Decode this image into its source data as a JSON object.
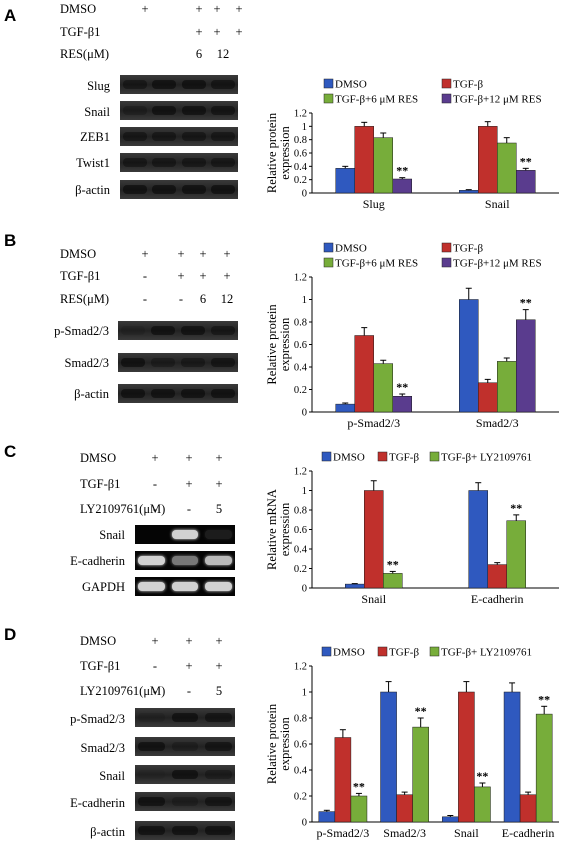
{
  "panels": [
    {
      "id": "A",
      "label": "A",
      "conditions": [
        {
          "name": "DMSO",
          "values": [
            "+",
            "+",
            "+",
            "+"
          ]
        },
        {
          "name": "TGF-β1",
          "values": [
            "",
            "+",
            "+",
            "+"
          ]
        },
        {
          "name": "RES(μM)",
          "values": [
            "",
            "",
            "6",
            "12"
          ]
        }
      ],
      "blots": [
        "Slug",
        "Snail",
        "ZEB1",
        "Twist1",
        "β-actin"
      ],
      "band_intensity": [
        [
          0.7,
          0.9,
          0.9,
          0.8
        ],
        [
          0.4,
          0.9,
          0.9,
          0.8
        ],
        [
          0.7,
          0.7,
          0.7,
          0.7
        ],
        [
          0.7,
          0.7,
          0.7,
          0.7
        ],
        [
          0.9,
          0.9,
          0.9,
          0.9
        ]
      ]
    },
    {
      "id": "B",
      "label": "B",
      "conditions": [
        {
          "name": "DMSO",
          "values": [
            "+",
            "+",
            "+",
            "+"
          ]
        },
        {
          "name": "TGF-β1",
          "values": [
            "-",
            "+",
            "+",
            "+"
          ]
        },
        {
          "name": "RES(μM)",
          "values": [
            "-",
            "-",
            "6",
            "12"
          ]
        }
      ],
      "blots": [
        "p-Smad2/3",
        "Smad2/3",
        "β-actin"
      ],
      "band_intensity": [
        [
          0.2,
          0.9,
          0.9,
          0.7
        ],
        [
          0.9,
          0.5,
          0.6,
          0.8
        ],
        [
          0.9,
          0.9,
          0.9,
          0.9
        ]
      ]
    },
    {
      "id": "C",
      "label": "C",
      "conditions": [
        {
          "name": "DMSO",
          "values": [
            "+",
            "+",
            "+"
          ]
        },
        {
          "name": "TGF-β1",
          "values": [
            "-",
            "+",
            "+"
          ]
        },
        {
          "name": "LY2109761(μM)",
          "values": [
            "-",
            "-",
            "5"
          ]
        }
      ],
      "blots": [
        "Snail",
        "E-cadherin",
        "GAPDH"
      ],
      "band_intensity": [
        [
          0,
          0.9,
          0.1
        ],
        [
          0.9,
          0.5,
          0.8
        ],
        [
          0.9,
          0.9,
          0.9
        ]
      ]
    },
    {
      "id": "D",
      "label": "D",
      "conditions": [
        {
          "name": "DMSO",
          "values": [
            "+",
            "+",
            "+"
          ]
        },
        {
          "name": "TGF-β1",
          "values": [
            "-",
            "+",
            "+"
          ]
        },
        {
          "name": "LY2109761(μM)",
          "values": [
            "-",
            "-",
            "5"
          ]
        }
      ],
      "blots": [
        "p-Smad2/3",
        "Smad2/3",
        "Snail",
        "E-cadherin",
        "β-actin"
      ],
      "band_intensity": [
        [
          0.2,
          0.9,
          0.8
        ],
        [
          0.9,
          0.4,
          0.8
        ],
        [
          0.1,
          0.9,
          0.5
        ],
        [
          0.9,
          0.4,
          0.8
        ],
        [
          0.9,
          0.9,
          0.9
        ]
      ]
    }
  ],
  "chart_data": [
    {
      "panel": "A",
      "type": "bar",
      "categories": [
        "Slug",
        "Snail"
      ],
      "series": [
        {
          "name": "DMSO",
          "color": "#2f59bf",
          "values": [
            0.37,
            0.04
          ],
          "errors": [
            0.03,
            0.01
          ],
          "sig": [
            "",
            ""
          ]
        },
        {
          "name": "TGF-β",
          "color": "#c0302c",
          "values": [
            1.0,
            1.0
          ],
          "errors": [
            0.06,
            0.07
          ],
          "sig": [
            "",
            ""
          ]
        },
        {
          "name": "TGF-β+6 μM RES",
          "color": "#77ad3a",
          "values": [
            0.83,
            0.75
          ],
          "errors": [
            0.07,
            0.08
          ],
          "sig": [
            "",
            ""
          ]
        },
        {
          "name": "TGF-β+12 μM RES",
          "color": "#5a3c8e",
          "values": [
            0.21,
            0.34
          ],
          "errors": [
            0.02,
            0.03
          ],
          "sig": [
            "**",
            "**"
          ]
        }
      ],
      "ylabel": "Relative protein expression",
      "ylim": [
        0,
        1.2
      ],
      "yticks": [
        "0",
        "0.2",
        "0.4",
        "0.6",
        "0.8",
        "1",
        "1.2"
      ],
      "legend": "top"
    },
    {
      "panel": "B",
      "type": "bar",
      "categories": [
        "p-Smad2/3",
        "Smad2/3"
      ],
      "series": [
        {
          "name": "DMSO",
          "color": "#2f59bf",
          "values": [
            0.07,
            1.0
          ],
          "errors": [
            0.01,
            0.1
          ],
          "sig": [
            "",
            ""
          ]
        },
        {
          "name": "TGF-β",
          "color": "#c0302c",
          "values": [
            0.68,
            0.26
          ],
          "errors": [
            0.07,
            0.03
          ],
          "sig": [
            "",
            ""
          ]
        },
        {
          "name": "TGF-β+6 μM RES",
          "color": "#77ad3a",
          "values": [
            0.43,
            0.45
          ],
          "errors": [
            0.03,
            0.03
          ],
          "sig": [
            "",
            ""
          ]
        },
        {
          "name": "TGF-β+12 μM RES",
          "color": "#5a3c8e",
          "values": [
            0.14,
            0.82
          ],
          "errors": [
            0.02,
            0.09
          ],
          "sig": [
            "**",
            "**"
          ]
        }
      ],
      "ylabel": "Relative protein expression",
      "ylim": [
        0,
        1.2
      ],
      "yticks": [
        "0",
        "0.2",
        "0.4",
        "0.6",
        "0.8",
        "1",
        "1.2"
      ],
      "legend": "top"
    },
    {
      "panel": "C",
      "type": "bar",
      "categories": [
        "Snail",
        "E-cadherin"
      ],
      "series": [
        {
          "name": "DMSO",
          "color": "#2f59bf",
          "values": [
            0.04,
            1.0
          ],
          "errors": [
            0.005,
            0.08
          ],
          "sig": [
            "",
            ""
          ]
        },
        {
          "name": "TGF-β",
          "color": "#c0302c",
          "values": [
            1.0,
            0.24
          ],
          "errors": [
            0.1,
            0.02
          ],
          "sig": [
            "",
            ""
          ]
        },
        {
          "name": "TGF-β+ LY2109761",
          "color": "#77ad3a",
          "values": [
            0.15,
            0.69
          ],
          "errors": [
            0.02,
            0.06
          ],
          "sig": [
            "**",
            "**"
          ]
        }
      ],
      "ylabel": "Relative mRNA expression",
      "ylim": [
        0,
        1.2
      ],
      "yticks": [
        "0",
        "0.2",
        "0.4",
        "0.6",
        "0.8",
        "1",
        "1.2"
      ],
      "legend": "top"
    },
    {
      "panel": "D",
      "type": "bar",
      "categories": [
        "p-Smad2/3",
        "Smad2/3",
        "Snail",
        "E-cadherin"
      ],
      "series": [
        {
          "name": "DMSO",
          "color": "#2f59bf",
          "values": [
            0.08,
            1.0,
            0.04,
            1.0
          ],
          "errors": [
            0.01,
            0.08,
            0.01,
            0.07
          ],
          "sig": [
            "",
            "",
            "",
            ""
          ]
        },
        {
          "name": "TGF-β",
          "color": "#c0302c",
          "values": [
            0.65,
            0.21,
            1.0,
            0.21
          ],
          "errors": [
            0.06,
            0.02,
            0.08,
            0.02
          ],
          "sig": [
            "",
            "",
            "",
            ""
          ]
        },
        {
          "name": "TGF-β+ LY2109761",
          "color": "#77ad3a",
          "values": [
            0.2,
            0.73,
            0.27,
            0.83
          ],
          "errors": [
            0.02,
            0.07,
            0.03,
            0.06
          ],
          "sig": [
            "**",
            "**",
            "**",
            "**"
          ]
        }
      ],
      "ylabel": "Relative protein expression",
      "ylim": [
        0,
        1.2
      ],
      "yticks": [
        "0",
        "0.2",
        "0.4",
        "0.6",
        "0.8",
        "1",
        "1.2"
      ],
      "legend": "top"
    }
  ]
}
